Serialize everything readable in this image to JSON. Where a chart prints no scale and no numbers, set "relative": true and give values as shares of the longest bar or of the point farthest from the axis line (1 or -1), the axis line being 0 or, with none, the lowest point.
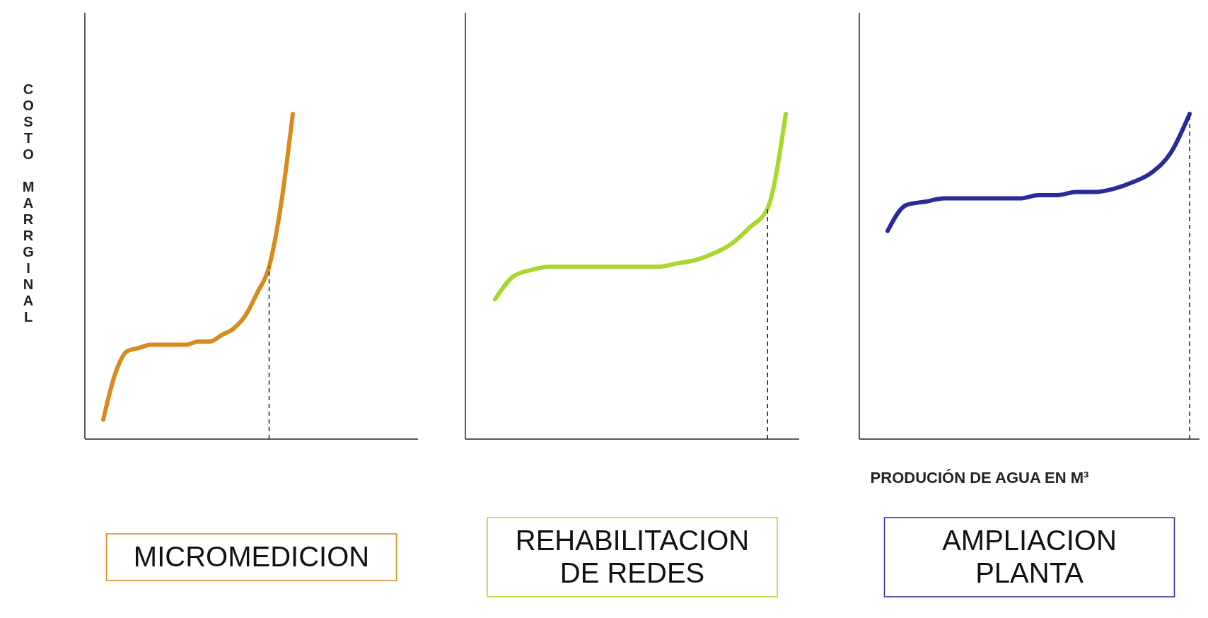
{
  "chart_data": [
    {
      "type": "line",
      "relative": true,
      "title": "MICROMEDICION",
      "ylabel": "COSTO MARRGINAL",
      "categories": [
        null,
        null,
        null,
        null,
        null,
        null,
        null,
        null,
        null,
        null,
        null,
        null,
        null,
        null,
        null,
        null,
        null
      ],
      "series": [
        {
          "color": "#d98a1c",
          "values": [
            0.06,
            0.2,
            0.27,
            0.28,
            0.29,
            0.29,
            0.29,
            0.29,
            0.3,
            0.3,
            0.32,
            0.34,
            0.38,
            0.45,
            0.53,
            0.72,
            1
          ]
        }
      ]
    },
    {
      "type": "line",
      "relative": true,
      "title": "REHABILITACION DE REDES",
      "categories": [
        null,
        null,
        null,
        null,
        null,
        null,
        null,
        null,
        null,
        null,
        null,
        null,
        null,
        null,
        null,
        null,
        null
      ],
      "series": [
        {
          "color": "#a8d82a",
          "values": [
            0.43,
            0.5,
            0.52,
            0.53,
            0.53,
            0.53,
            0.53,
            0.53,
            0.53,
            0.53,
            0.54,
            0.55,
            0.57,
            0.6,
            0.65,
            0.71,
            1
          ]
        }
      ]
    },
    {
      "type": "line",
      "relative": true,
      "title": "AMPLIACION PLANTA",
      "xlabel": "PRODUCIÓN DE AGUA EN M³",
      "categories": [
        null,
        null,
        null,
        null,
        null,
        null,
        null,
        null,
        null,
        null,
        null,
        null,
        null,
        null,
        null,
        null,
        null
      ],
      "series": [
        {
          "color": "#2b2a9a",
          "values": [
            0.64,
            0.72,
            0.73,
            0.74,
            0.74,
            0.74,
            0.74,
            0.74,
            0.75,
            0.75,
            0.76,
            0.76,
            0.77,
            0.79,
            0.82,
            0.88,
            1
          ]
        }
      ]
    }
  ]
}
